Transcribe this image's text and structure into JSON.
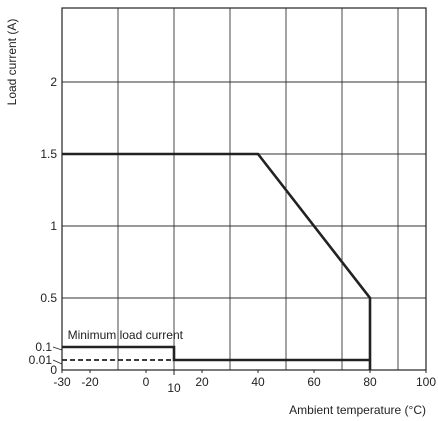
{
  "chart_data": {
    "type": "line",
    "xlabel": "Ambient temperature (°C)",
    "ylabel": "Load current (A)",
    "xlim": [
      -30,
      100
    ],
    "ylim": [
      0,
      2.5
    ],
    "grid": true,
    "x_ticks": [
      {
        "value": -30,
        "label": "-30"
      },
      {
        "value": -20,
        "label": "-20"
      },
      {
        "value": 0,
        "label": "0"
      },
      {
        "value": 10,
        "label": "10"
      },
      {
        "value": 20,
        "label": "20"
      },
      {
        "value": 40,
        "label": "40"
      },
      {
        "value": 60,
        "label": "60"
      },
      {
        "value": 80,
        "label": "80"
      },
      {
        "value": 100,
        "label": "100"
      }
    ],
    "x_grid": [
      -30,
      -10,
      10,
      30,
      50,
      70,
      90
    ],
    "y_ticks": [
      {
        "value": 0,
        "label": "0"
      },
      {
        "value": 0.01,
        "label": "0.01"
      },
      {
        "value": 0.1,
        "label": "0.1"
      },
      {
        "value": 0.5,
        "label": "0.5"
      },
      {
        "value": 1,
        "label": "1"
      },
      {
        "value": 1.5,
        "label": "1.5"
      },
      {
        "value": 2,
        "label": "2"
      }
    ],
    "y_grid": [
      0.5,
      1,
      1.5,
      2
    ],
    "series": [
      {
        "name": "",
        "style": "solid",
        "points": [
          [
            -30,
            1.5
          ],
          [
            40,
            1.5
          ],
          [
            80,
            0.5
          ],
          [
            80,
            0
          ]
        ]
      },
      {
        "name": "Minimum load current",
        "style": "solid",
        "points": [
          [
            -30,
            0.1
          ],
          [
            10,
            0.1
          ],
          [
            10,
            0.01
          ],
          [
            80,
            0.01
          ]
        ]
      },
      {
        "name": "",
        "style": "dashed",
        "points": [
          [
            -30,
            0.01
          ],
          [
            10,
            0.01
          ]
        ]
      }
    ],
    "annotations": [
      {
        "text": "Minimum load current",
        "x": -28,
        "y": 0.18
      }
    ]
  }
}
